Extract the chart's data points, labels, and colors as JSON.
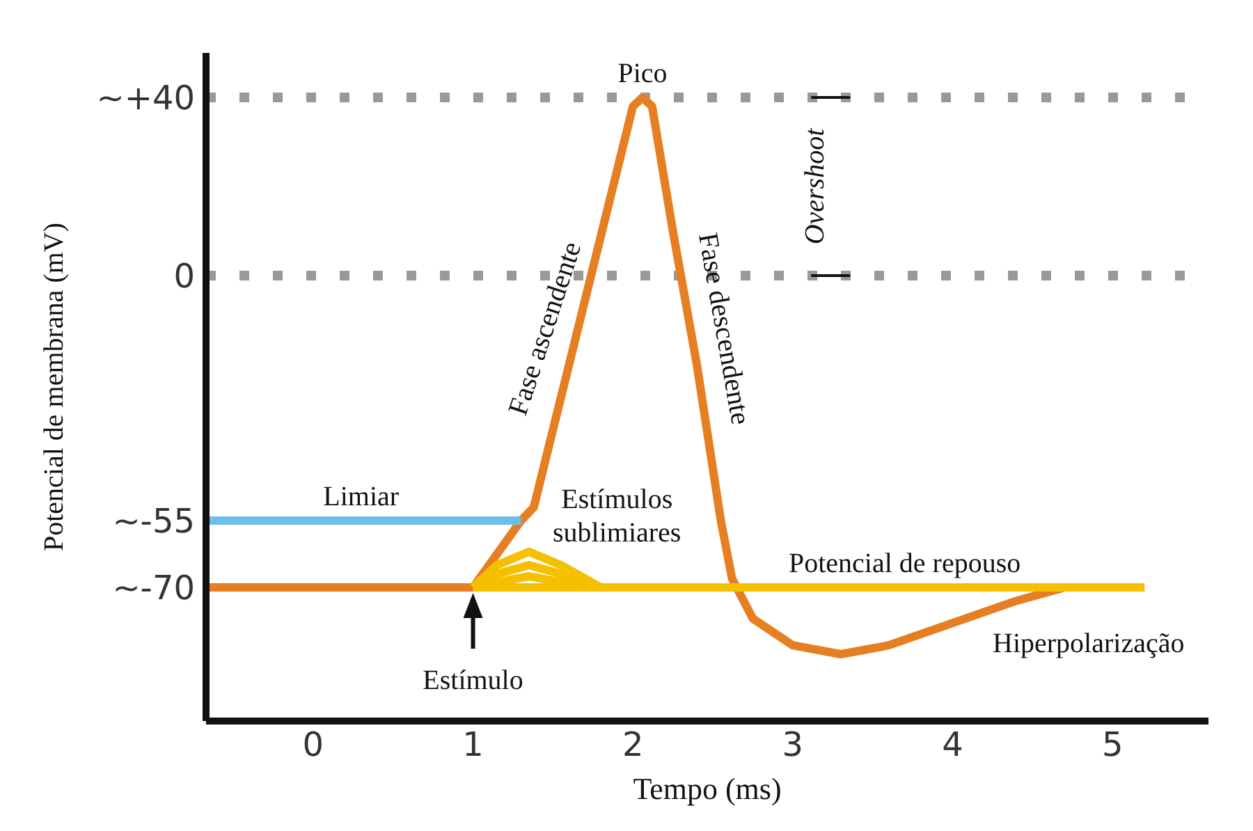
{
  "chart_data": {
    "type": "line",
    "xlabel": "Tempo (ms)",
    "ylabel": "Potencial de membrana (mV)",
    "xlim": [
      -0.67,
      5.6
    ],
    "xticks": [
      0,
      1,
      2,
      3,
      4,
      5
    ],
    "ylim": [
      -100,
      50
    ],
    "yticks": [
      {
        "value": 40,
        "label": "~+40"
      },
      0,
      {
        "value": -55,
        "label": "~-55"
      },
      {
        "value": -70,
        "label": "~-70"
      }
    ],
    "marker": "none",
    "line_style": "solid",
    "ref_lines": [
      {
        "axis": "y",
        "value": 40,
        "color": "#999999",
        "line_style": "dotted"
      },
      {
        "axis": "y",
        "value": 0,
        "color": "#999999",
        "line_style": "dotted"
      }
    ],
    "series": [
      {
        "color": "#e67e22",
        "x": [
          -0.65,
          1.0,
          1.3,
          1.38,
          2.0,
          2.06,
          2.12,
          2.25,
          2.4,
          2.55,
          2.62,
          2.75,
          3.0,
          3.3,
          3.6,
          4.0,
          4.4,
          4.7,
          5.2
        ],
        "values": [
          -70,
          -70,
          -55,
          -52,
          38,
          40,
          38,
          10,
          -20,
          -55,
          -68,
          -77,
          -83,
          -85,
          -83,
          -78,
          -73,
          -70,
          -70
        ]
      },
      {
        "color": "#6bbfea",
        "x": [
          -0.65,
          1.3
        ],
        "values": [
          -55,
          -55
        ]
      },
      {
        "color": "#f5c000",
        "x": [
          1.0,
          5.2
        ],
        "values": [
          -70,
          -70
        ]
      },
      {
        "color": "#f5c000",
        "x": [
          1.0,
          1.15,
          1.35,
          1.55,
          1.8
        ],
        "values": [
          -70,
          -65,
          -62,
          -65,
          -70
        ]
      },
      {
        "color": "#f5c000",
        "x": [
          1.0,
          1.15,
          1.35,
          1.55,
          1.75
        ],
        "values": [
          -70,
          -67,
          -65,
          -67,
          -70
        ]
      },
      {
        "color": "#f5c000",
        "x": [
          1.0,
          1.2,
          1.35,
          1.5,
          1.7
        ],
        "values": [
          -70,
          -68.5,
          -67.5,
          -68.5,
          -70
        ]
      }
    ],
    "annotations": [
      {
        "text": "Pico",
        "x": 2.06,
        "y": 40
      },
      {
        "text": "Limiar",
        "x": 0.3,
        "y": -55
      },
      "Estímulos sublimiares",
      {
        "text": "Potencial de repouso",
        "x": 3.7,
        "y": -70
      },
      "Hiperpolarização",
      {
        "text": "Estímulo",
        "x": 1.0,
        "y": -70
      },
      {
        "text": "Fase ascendente",
        "x": 1.6,
        "y": -12
      },
      {
        "text": "Fase descendente",
        "x": 2.42,
        "y": -12
      },
      "Overshoot"
    ]
  }
}
